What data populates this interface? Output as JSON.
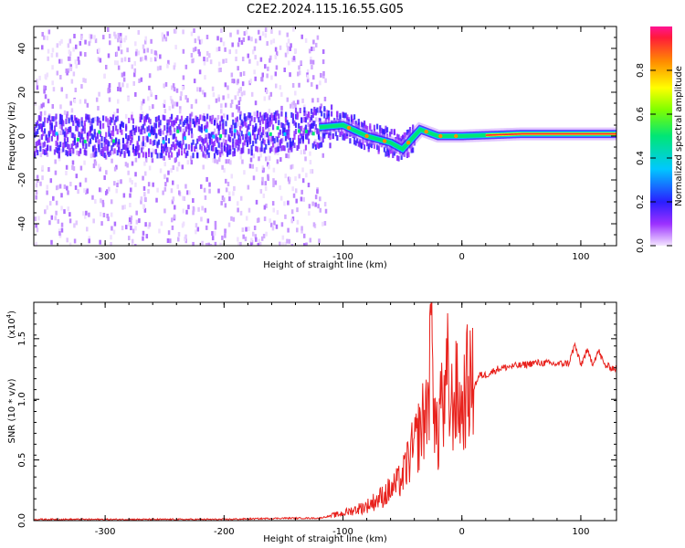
{
  "title": "C2E2.2024.115.16.55.G05",
  "colors": {
    "line": "#e8211c",
    "axis": "#000000",
    "background": "#ffffff"
  },
  "chart_data": [
    {
      "type": "heatmap",
      "xlabel": "Height of straight line (km)",
      "ylabel": "Frequency (Hz)",
      "xlim": [
        -360,
        130
      ],
      "ylim": [
        -50,
        50
      ],
      "xticks": [
        -300,
        -200,
        -100,
        0,
        100
      ],
      "xtick_labels": [
        "-300",
        "-200",
        "-100",
        "0",
        "100"
      ],
      "yticks": [
        -40,
        -20,
        0,
        20,
        40
      ],
      "ytick_labels": [
        "-40",
        "-20",
        "0",
        "20",
        "40"
      ],
      "noise_band": {
        "x": [
          -360,
          -115
        ],
        "y": [
          -50,
          50
        ]
      },
      "ridge": {
        "x": [
          -360,
          -300,
          -200,
          -120,
          -100,
          -80,
          -60,
          -50,
          -40,
          -35,
          -20,
          0,
          50,
          80,
          100,
          130
        ],
        "freq": [
          0,
          0,
          0,
          4,
          5,
          0,
          -3,
          -6,
          0,
          3,
          0,
          0,
          1,
          1,
          1,
          1
        ]
      },
      "colorbar": {
        "label": "Normalized spectral amplitude",
        "range": [
          0.0,
          1.0
        ],
        "ticks": [
          0.0,
          0.2,
          0.4,
          0.6,
          0.8
        ],
        "tick_labels": [
          "0.0",
          "0.2",
          "0.4",
          "0.6",
          "0.8"
        ]
      }
    },
    {
      "type": "line",
      "xlabel": "Height of straight line (km)",
      "ylabel": "SNR (10 * v/v)",
      "scale_label": "(x10",
      "scale_exp": "4",
      "scale_close": ")",
      "xlim": [
        -360,
        130
      ],
      "ylim": [
        0,
        1.8
      ],
      "xticks": [
        -300,
        -200,
        -100,
        0,
        100
      ],
      "xtick_labels": [
        "-300",
        "-200",
        "-100",
        "0",
        "100"
      ],
      "yticks": [
        0.0,
        0.5,
        1.0,
        1.5
      ],
      "ytick_labels": [
        "0.0",
        "0.5",
        "1.0",
        "1.5"
      ],
      "series": [
        {
          "name": "SNR",
          "x": [
            -360,
            -300,
            -200,
            -150,
            -120,
            -110,
            -100,
            -90,
            -80,
            -70,
            -60,
            -50,
            -45,
            -40,
            -35,
            -30,
            -27,
            -25,
            -23,
            -20,
            -18,
            -15,
            -12,
            -10,
            -5,
            0,
            5,
            10,
            15,
            20,
            30,
            40,
            50,
            60,
            70,
            80,
            90,
            95,
            100,
            105,
            110,
            115,
            120,
            130
          ],
          "y": [
            0.01,
            0.01,
            0.01,
            0.02,
            0.02,
            0.04,
            0.06,
            0.09,
            0.12,
            0.18,
            0.25,
            0.35,
            0.5,
            0.6,
            0.75,
            0.9,
            1.2,
            1.85,
            0.85,
            0.6,
            1.1,
            0.85,
            1.2,
            0.9,
            1.05,
            0.9,
            1.15,
            1.1,
            1.2,
            1.2,
            1.25,
            1.27,
            1.28,
            1.3,
            1.3,
            1.29,
            1.3,
            1.45,
            1.28,
            1.4,
            1.3,
            1.4,
            1.28,
            1.25
          ]
        }
      ]
    }
  ]
}
